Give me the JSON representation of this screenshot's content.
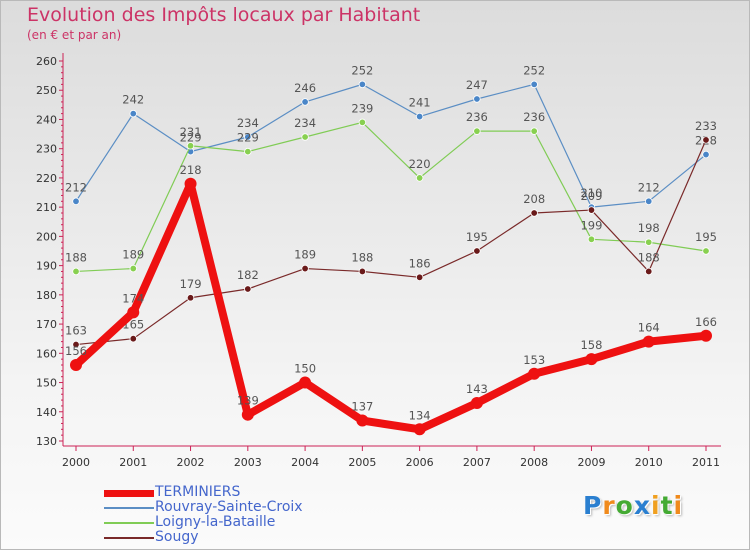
{
  "chart_data": {
    "type": "line",
    "title": "Evolution des Impôts locaux par Habitant",
    "subtitle": "(en € et par an)",
    "xlabel": "",
    "ylabel": "",
    "ylim": [
      130,
      260
    ],
    "yticks": [
      130,
      140,
      150,
      160,
      170,
      180,
      190,
      200,
      210,
      220,
      230,
      240,
      250,
      260
    ],
    "categories": [
      "2000",
      "2001",
      "2002",
      "2003",
      "2004",
      "2005",
      "2006",
      "2007",
      "2008",
      "2009",
      "2010",
      "2011"
    ],
    "series": [
      {
        "name": "Rouvray-Sainte-Croix",
        "color": "#5b8ec4",
        "marker": "#4a86c8",
        "width": "thin",
        "values": [
          212,
          242,
          229,
          234,
          246,
          252,
          241,
          247,
          252,
          210,
          212,
          228
        ]
      },
      {
        "name": "Loigny-la-Bataille",
        "color": "#80cc55",
        "marker": "#88d050",
        "width": "thin",
        "values": [
          188,
          189,
          231,
          229,
          234,
          239,
          220,
          236,
          236,
          199,
          198,
          195
        ]
      },
      {
        "name": "Sougy",
        "color": "#7a2a2a",
        "marker": "#6a1a1a",
        "width": "thin",
        "values": [
          163,
          165,
          179,
          182,
          189,
          188,
          186,
          195,
          208,
          209,
          188,
          233
        ]
      },
      {
        "name": "TERMINIERS",
        "color": "#ee1111",
        "marker": "#ee1111",
        "width": "thick",
        "values": [
          156,
          174,
          218,
          139,
          150,
          137,
          134,
          143,
          153,
          158,
          164,
          166
        ]
      }
    ],
    "legend_order": [
      "TERMINIERS",
      "Rouvray-Sainte-Croix",
      "Loigny-la-Bataille",
      "Sougy"
    ],
    "legend_position": "bottom-left",
    "grid": false
  },
  "logo": {
    "letters": [
      "P",
      "r",
      "o",
      "x",
      "i",
      "t",
      "i"
    ],
    "colors": [
      "#2a7fd0",
      "#f08a1c",
      "#44aa33",
      "#2a7fd0",
      "#f0a020",
      "#44aa33",
      "#f08a1c"
    ]
  }
}
